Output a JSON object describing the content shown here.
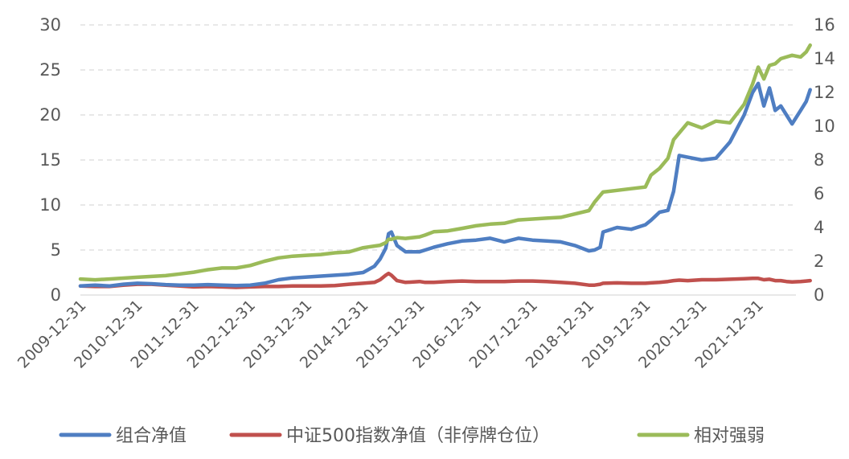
{
  "chart_data": {
    "type": "line",
    "title": "",
    "xlabel": "",
    "ylabel": "",
    "y_left": {
      "ticks": [
        "0",
        "5",
        "10",
        "15",
        "20",
        "25",
        "30"
      ],
      "ylim": [
        0,
        30
      ]
    },
    "y_right": {
      "ticks": [
        "0",
        "2",
        "4",
        "6",
        "8",
        "10",
        "12",
        "14",
        "16"
      ],
      "ylim": [
        0,
        16
      ]
    },
    "x_ticks": [
      "2009-12-31",
      "2010-12-31",
      "2011-12-31",
      "2012-12-31",
      "2013-12-31",
      "2014-12-31",
      "2015-12-31",
      "2016-12-31",
      "2017-12-31",
      "2018-12-31",
      "2019-12-31",
      "2020-12-31",
      "2021-12-31"
    ],
    "grid": "horizontal dashed",
    "legend_position": "bottom",
    "x": [
      2009.99,
      2010.25,
      2010.5,
      2010.75,
      2011.0,
      2011.25,
      2011.5,
      2011.75,
      2012.0,
      2012.25,
      2012.5,
      2012.75,
      2013.0,
      2013.25,
      2013.5,
      2013.75,
      2014.0,
      2014.25,
      2014.5,
      2014.75,
      2015.0,
      2015.2,
      2015.3,
      2015.4,
      2015.45,
      2015.5,
      2015.6,
      2015.75,
      2016.0,
      2016.1,
      2016.25,
      2016.5,
      2016.75,
      2017.0,
      2017.25,
      2017.5,
      2017.75,
      2018.0,
      2018.25,
      2018.5,
      2018.75,
      2019.0,
      2019.1,
      2019.2,
      2019.25,
      2019.5,
      2019.75,
      2020.0,
      2020.1,
      2020.25,
      2020.4,
      2020.5,
      2020.6,
      2020.75,
      2021.0,
      2021.25,
      2021.5,
      2021.75,
      2021.9,
      2022.0,
      2022.1,
      2022.2,
      2022.3,
      2022.4,
      2022.5,
      2022.6,
      2022.75,
      2022.85,
      2022.92
    ],
    "series": [
      {
        "name": "组合净值",
        "color": "#4F7EC2",
        "axis": "left",
        "values": [
          1.0,
          1.1,
          1.0,
          1.2,
          1.3,
          1.25,
          1.15,
          1.1,
          1.1,
          1.15,
          1.1,
          1.05,
          1.1,
          1.3,
          1.7,
          1.9,
          2.0,
          2.1,
          2.2,
          2.3,
          2.5,
          3.2,
          4.0,
          5.2,
          6.8,
          7.0,
          5.5,
          4.8,
          4.8,
          5.0,
          5.3,
          5.7,
          6.0,
          6.1,
          6.3,
          5.9,
          6.3,
          6.1,
          6.0,
          5.9,
          5.5,
          4.9,
          5.0,
          5.3,
          7.0,
          7.5,
          7.3,
          7.8,
          8.3,
          9.2,
          9.4,
          11.5,
          15.5,
          15.3,
          15.0,
          15.2,
          17.0,
          20.0,
          22.5,
          23.5,
          21.0,
          23.0,
          20.5,
          21.0,
          20.0,
          19.0,
          20.5,
          21.5,
          22.8
        ]
      },
      {
        "name": "中证500指数净值（非停牌仓位）",
        "color": "#C0504D",
        "axis": "left",
        "values": [
          1.0,
          0.95,
          0.95,
          1.1,
          1.2,
          1.2,
          1.1,
          1.0,
          0.9,
          0.95,
          0.9,
          0.85,
          0.9,
          0.95,
          0.95,
          1.0,
          1.0,
          1.0,
          1.05,
          1.2,
          1.3,
          1.4,
          1.7,
          2.2,
          2.4,
          2.2,
          1.6,
          1.4,
          1.5,
          1.4,
          1.4,
          1.5,
          1.55,
          1.5,
          1.5,
          1.5,
          1.55,
          1.55,
          1.5,
          1.4,
          1.3,
          1.1,
          1.1,
          1.2,
          1.3,
          1.35,
          1.3,
          1.3,
          1.35,
          1.4,
          1.5,
          1.6,
          1.65,
          1.6,
          1.7,
          1.7,
          1.75,
          1.8,
          1.85,
          1.85,
          1.7,
          1.75,
          1.6,
          1.6,
          1.5,
          1.45,
          1.5,
          1.55,
          1.6
        ]
      },
      {
        "name": "相对强弱",
        "color": "#9BBB59",
        "axis": "right",
        "values": [
          0.95,
          0.9,
          0.95,
          1.0,
          1.05,
          1.1,
          1.15,
          1.25,
          1.35,
          1.5,
          1.6,
          1.6,
          1.75,
          2.0,
          2.2,
          2.3,
          2.35,
          2.4,
          2.5,
          2.55,
          2.8,
          2.9,
          2.95,
          3.1,
          3.3,
          3.3,
          3.4,
          3.35,
          3.45,
          3.55,
          3.75,
          3.8,
          3.95,
          4.1,
          4.2,
          4.25,
          4.45,
          4.5,
          4.55,
          4.6,
          4.8,
          5.0,
          5.5,
          5.9,
          6.1,
          6.2,
          6.3,
          6.4,
          7.1,
          7.5,
          8.1,
          9.2,
          9.6,
          10.2,
          9.9,
          10.3,
          10.2,
          11.3,
          12.5,
          13.5,
          12.8,
          13.6,
          13.7,
          14.0,
          14.1,
          14.2,
          14.1,
          14.4,
          14.8
        ]
      }
    ]
  },
  "legend": {
    "items": [
      {
        "label": "组合净值",
        "color": "#4F7EC2"
      },
      {
        "label": "中证500指数净值（非停牌仓位）",
        "color": "#C0504D"
      },
      {
        "label": "相对强弱",
        "color": "#9BBB59"
      }
    ]
  },
  "colors": {
    "grid": "#D9D9D9",
    "tick_text": "#595959"
  }
}
